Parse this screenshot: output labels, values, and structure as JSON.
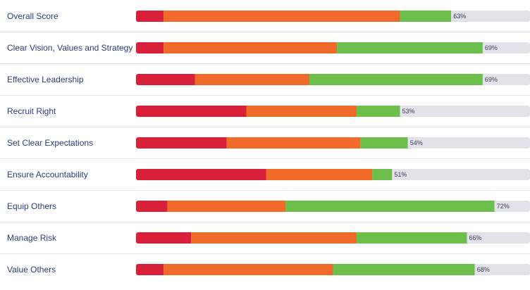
{
  "chart_data": {
    "type": "bar",
    "orientation": "horizontal",
    "stacked": true,
    "xlim": [
      0,
      100
    ],
    "grid": false,
    "categories": [
      "Overall Score",
      "Clear Vision, Values and Strategy",
      "Effective Leadership",
      "Recruit Right",
      "Set Clear Expectations",
      "Ensure Accountability",
      "Equip Others",
      "Manage Risk",
      "Value Others"
    ],
    "series": [
      {
        "color": "#d9203a",
        "values": [
          7,
          7,
          15,
          28,
          23,
          33,
          8,
          14,
          7
        ]
      },
      {
        "color": "#f26a2a",
        "values": [
          60,
          44,
          29,
          28,
          34,
          27,
          30,
          42,
          43
        ]
      },
      {
        "color": "#6cbf4a",
        "values": [
          13,
          37,
          44,
          11,
          12,
          5,
          53,
          28,
          36
        ]
      },
      {
        "color": "#e2e3e8",
        "values": [
          20,
          12,
          12,
          33,
          31,
          35,
          9,
          16,
          14
        ]
      }
    ],
    "labels": [
      "63%",
      "69%",
      "69%",
      "53%",
      "54%",
      "51%",
      "72%",
      "66%",
      "68%"
    ]
  }
}
